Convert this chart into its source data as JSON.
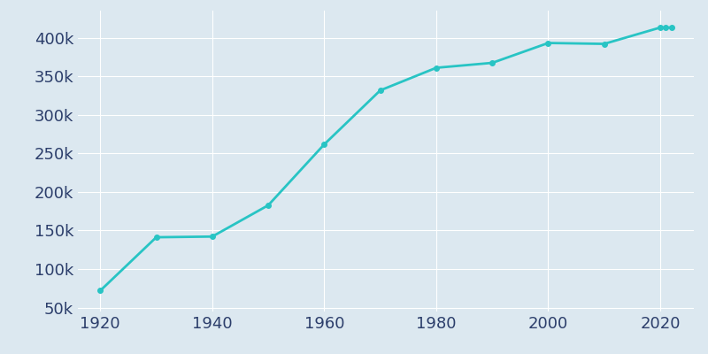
{
  "years": [
    1920,
    1930,
    1940,
    1950,
    1960,
    1970,
    1980,
    1990,
    2000,
    2010,
    2020,
    2021,
    2022
  ],
  "population": [
    72075,
    141258,
    142157,
    182740,
    261685,
    331638,
    360919,
    367302,
    393049,
    391906,
    413066,
    413066,
    413066
  ],
  "line_color": "#28c4c4",
  "marker_color": "#28c4c4",
  "bg_color": "#dce8f0",
  "grid_color": "#ffffff",
  "text_color": "#2c3e6b",
  "ylim": [
    45000,
    435000
  ],
  "xlim": [
    1916,
    2026
  ],
  "yticks": [
    50000,
    100000,
    150000,
    200000,
    250000,
    300000,
    350000,
    400000
  ],
  "xticks": [
    1920,
    1940,
    1960,
    1980,
    2000,
    2020
  ],
  "linewidth": 2.0,
  "markersize": 4.0,
  "tick_labelsize": 13
}
